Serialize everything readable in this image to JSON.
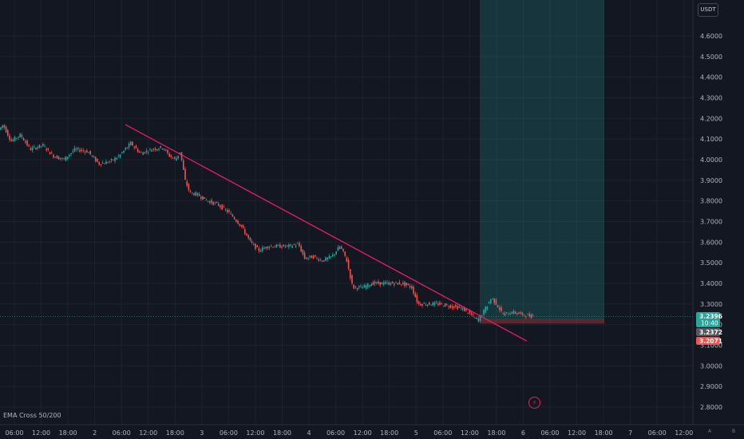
{
  "currency": "USDT",
  "indicator": "EMA Cross 50/200",
  "colors": {
    "up": "#26a69a",
    "down": "#ef5350",
    "trendline": "#e91e63",
    "profit_zone": "rgba(38,166,154,0.22)",
    "loss_zone": "rgba(239,83,80,0.30)",
    "grid": "#1e222d",
    "background": "#131722"
  },
  "price_tags": {
    "current_price": "3.2396",
    "countdown": "10:40",
    "second_price": "3.2372",
    "stop_price": "3.2071"
  },
  "icons": {
    "alert": "lightning-icon",
    "corner_left": "A",
    "corner_right": "B"
  },
  "chart_data": {
    "type": "candlestick",
    "y_range": [
      2.78,
      4.76
    ],
    "y_ticks": [
      "4.6000",
      "4.5000",
      "4.4000",
      "4.3000",
      "4.2000",
      "4.1000",
      "4.0000",
      "3.9000",
      "3.8000",
      "3.7000",
      "3.6000",
      "3.5000",
      "3.4000",
      "3.3000",
      "3.2000",
      "3.1000",
      "3.0000",
      "2.9000",
      "2.8000"
    ],
    "x_labels": [
      "06:00",
      "12:00",
      "18:00",
      "2",
      "06:00",
      "12:00",
      "18:00",
      "3",
      "06:00",
      "12:00",
      "18:00",
      "4",
      "06:00",
      "12:00",
      "18:00",
      "5",
      "06:00",
      "12:00",
      "18:00",
      "6",
      "06:00",
      "12:00",
      "18:00",
      "7",
      "06:00",
      "12:00"
    ],
    "price_path": [
      [
        0,
        4.14
      ],
      [
        6,
        4.17
      ],
      [
        16,
        4.09
      ],
      [
        28,
        4.12
      ],
      [
        40,
        4.05
      ],
      [
        56,
        4.07
      ],
      [
        68,
        4.02
      ],
      [
        82,
        4.0
      ],
      [
        96,
        4.05
      ],
      [
        112,
        4.04
      ],
      [
        126,
        3.98
      ],
      [
        140,
        3.99
      ],
      [
        152,
        4.02
      ],
      [
        166,
        4.08
      ],
      [
        178,
        4.03
      ],
      [
        192,
        4.05
      ],
      [
        206,
        4.06
      ],
      [
        214,
        4.02
      ],
      [
        222,
        4.0
      ],
      [
        228,
        4.04
      ],
      [
        234,
        3.9
      ],
      [
        240,
        3.84
      ],
      [
        250,
        3.83
      ],
      [
        262,
        3.8
      ],
      [
        276,
        3.78
      ],
      [
        290,
        3.74
      ],
      [
        304,
        3.68
      ],
      [
        316,
        3.6
      ],
      [
        326,
        3.56
      ],
      [
        338,
        3.58
      ],
      [
        350,
        3.58
      ],
      [
        364,
        3.58
      ],
      [
        376,
        3.59
      ],
      [
        384,
        3.52
      ],
      [
        394,
        3.53
      ],
      [
        406,
        3.51
      ],
      [
        418,
        3.53
      ],
      [
        428,
        3.58
      ],
      [
        436,
        3.52
      ],
      [
        444,
        3.38
      ],
      [
        456,
        3.38
      ],
      [
        468,
        3.4
      ],
      [
        480,
        3.4
      ],
      [
        494,
        3.4
      ],
      [
        506,
        3.4
      ],
      [
        518,
        3.38
      ],
      [
        526,
        3.3
      ],
      [
        536,
        3.3
      ],
      [
        552,
        3.3
      ],
      [
        566,
        3.29
      ],
      [
        580,
        3.28
      ],
      [
        592,
        3.25
      ],
      [
        600,
        3.22
      ],
      [
        606,
        3.25
      ],
      [
        612,
        3.29
      ],
      [
        618,
        3.33
      ],
      [
        624,
        3.3
      ],
      [
        632,
        3.25
      ],
      [
        644,
        3.26
      ],
      [
        656,
        3.25
      ],
      [
        668,
        3.24
      ]
    ],
    "trendline": {
      "start": {
        "x": 157,
        "price": 4.17
      },
      "end": {
        "x": 660,
        "price": 3.12
      }
    },
    "position": {
      "x_start": 601,
      "x_end": 757,
      "target_price": 4.76,
      "entry_price": 3.23,
      "stop_price": 3.205
    }
  }
}
